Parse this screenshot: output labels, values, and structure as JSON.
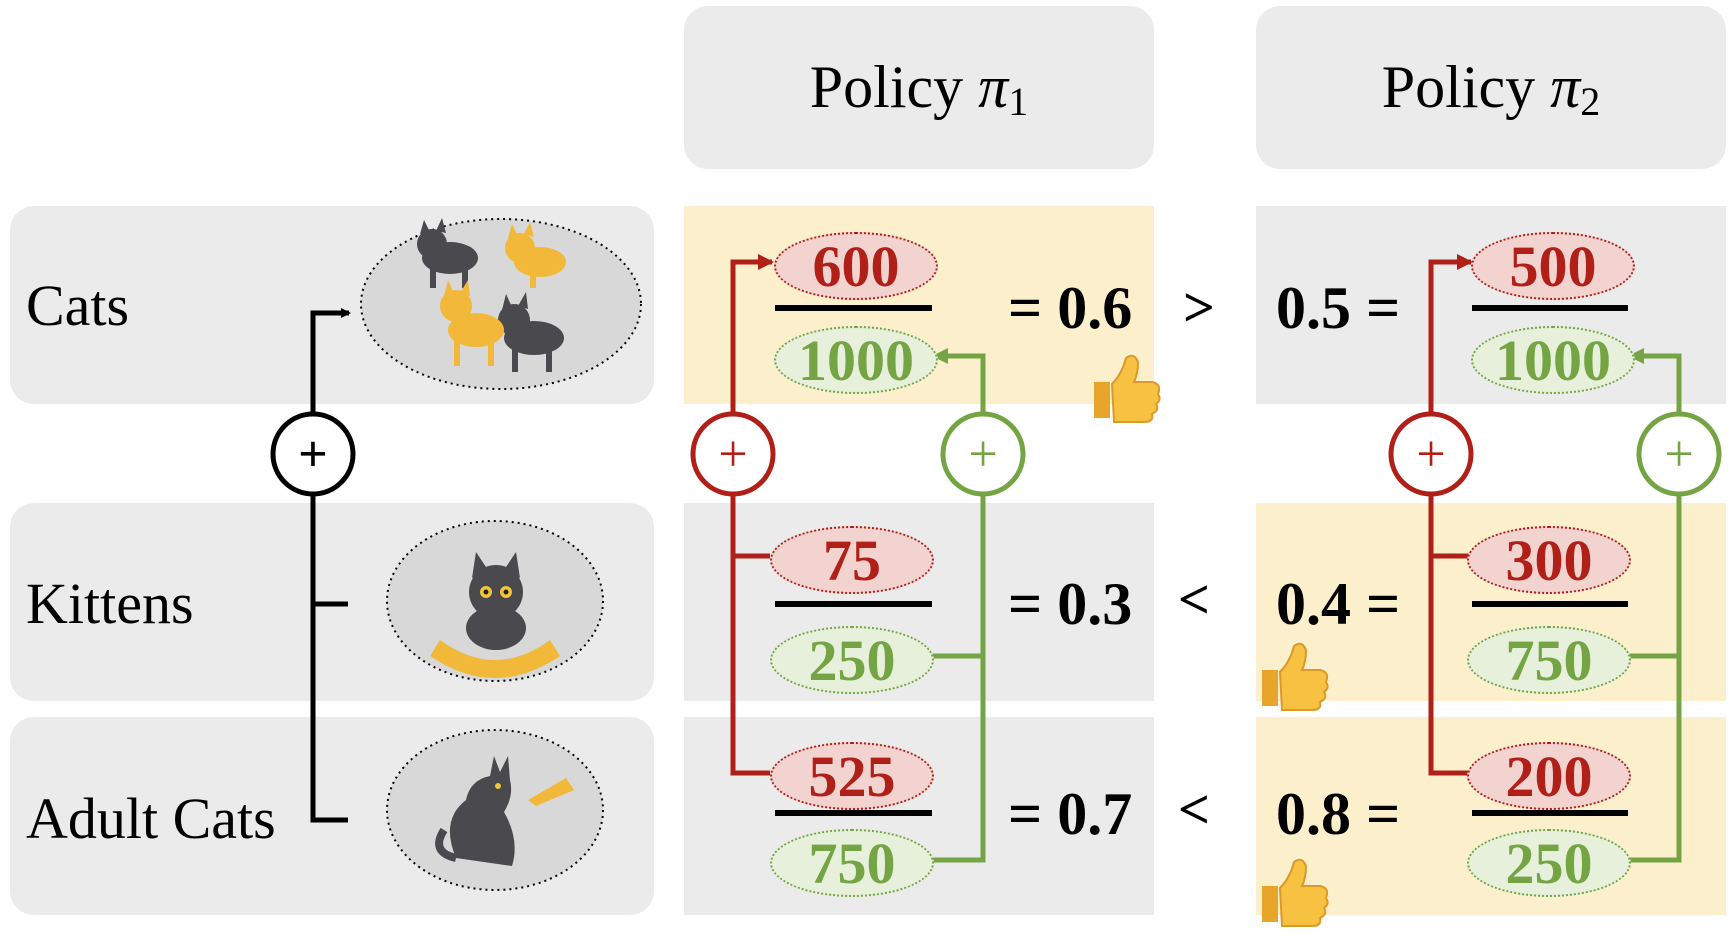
{
  "headers": [
    {
      "label": "Policy",
      "symbol": "π",
      "sub": "1"
    },
    {
      "label": "Policy",
      "symbol": "π",
      "sub": "2"
    }
  ],
  "rows": [
    {
      "label": "Cats",
      "icon": "cats-group-icon"
    },
    {
      "label": "Kittens",
      "icon": "kitten-in-hands-icon"
    },
    {
      "label": "Adult Cats",
      "icon": "adult-cat-icon"
    }
  ],
  "policy1": {
    "rows": [
      {
        "num": "600",
        "den": "1000",
        "result": "= 0.6"
      },
      {
        "num": "75",
        "den": "250",
        "result": "= 0.3"
      },
      {
        "num": "525",
        "den": "750",
        "result": "= 0.7"
      }
    ]
  },
  "policy2": {
    "rows": [
      {
        "num": "500",
        "den": "1000",
        "result": "0.5 ="
      },
      {
        "num": "300",
        "den": "750",
        "result": "0.4 ="
      },
      {
        "num": "200",
        "den": "250",
        "result": "0.8 ="
      }
    ]
  },
  "comparisons": [
    ">",
    "<",
    "<"
  ],
  "plus_symbol": "+",
  "thumb_icon": "thumbs-up-icon",
  "colors": {
    "cell_gray": "#ebebeb",
    "cell_highlight": "#fcf0cc",
    "numerator_red": "#b02018",
    "denominator_green": "#74a444",
    "tree_black": "#000000"
  }
}
